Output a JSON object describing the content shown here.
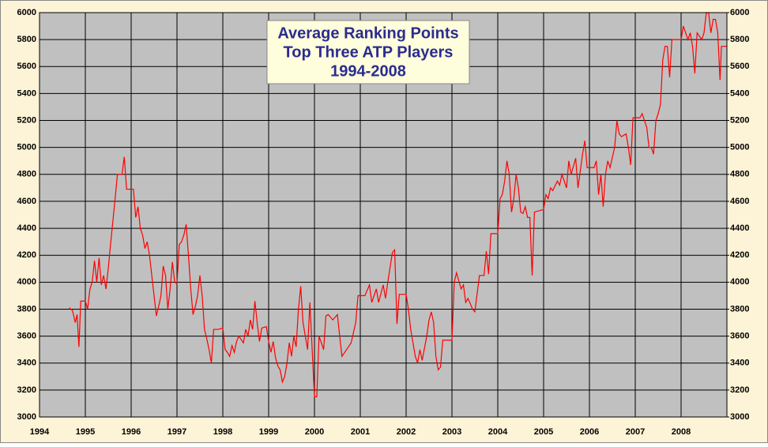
{
  "chart_data": {
    "type": "line",
    "title_lines": [
      "Average Ranking Points",
      "Top Three ATP Players",
      "1994-2008"
    ],
    "xlim": [
      1994,
      2009
    ],
    "xticks": [
      1994,
      1995,
      1996,
      1997,
      1998,
      1999,
      2000,
      2001,
      2002,
      2003,
      2004,
      2005,
      2006,
      2007,
      2008
    ],
    "ylim": [
      3000,
      6000
    ],
    "yticks": [
      3000,
      3200,
      3400,
      3600,
      3800,
      4000,
      4200,
      4400,
      4600,
      4800,
      5000,
      5200,
      5400,
      5600,
      5800,
      6000
    ],
    "y2lim": [
      3000,
      6000
    ],
    "y2ticks": [
      3000,
      3200,
      3400,
      3600,
      3800,
      4000,
      4200,
      4400,
      4600,
      4800,
      5000,
      5200,
      5400,
      5600,
      5800,
      6000
    ],
    "grid": true,
    "series": [
      {
        "color": "#ff0000",
        "x": [
          1994.65,
          1994.72,
          1994.78,
          1994.82,
          1994.86,
          1994.9,
          1995.0,
          1995.05,
          1995.1,
          1995.15,
          1995.2,
          1995.25,
          1995.3,
          1995.35,
          1995.4,
          1995.45,
          1995.5,
          1995.55,
          1995.6,
          1995.65,
          1995.7,
          1995.8,
          1995.85,
          1995.9,
          1996.0,
          1996.05,
          1996.1,
          1996.15,
          1996.2,
          1996.25,
          1996.3,
          1996.35,
          1996.4,
          1996.45,
          1996.5,
          1996.55,
          1996.6,
          1996.65,
          1996.7,
          1996.75,
          1996.8,
          1996.85,
          1996.9,
          1996.95,
          1997.0,
          1997.05,
          1997.1,
          1997.15,
          1997.2,
          1997.25,
          1997.3,
          1997.35,
          1997.4,
          1997.45,
          1997.5,
          1997.55,
          1997.6,
          1997.65,
          1997.7,
          1997.75,
          1997.8,
          1997.9,
          1998.0,
          1998.05,
          1998.1,
          1998.15,
          1998.2,
          1998.25,
          1998.3,
          1998.35,
          1998.45,
          1998.5,
          1998.55,
          1998.6,
          1998.65,
          1998.7,
          1998.75,
          1998.8,
          1998.85,
          1998.95,
          1999.0,
          1999.05,
          1999.1,
          1999.15,
          1999.2,
          1999.25,
          1999.3,
          1999.35,
          1999.4,
          1999.45,
          1999.5,
          1999.55,
          1999.6,
          1999.65,
          1999.7,
          1999.75,
          1999.8,
          1999.85,
          1999.9,
          2000.0,
          2000.05,
          2000.1,
          2000.15,
          2000.2,
          2000.25,
          2000.3,
          2000.4,
          2000.5,
          2000.55,
          2000.6,
          2000.7,
          2000.8,
          2000.9,
          2000.95,
          2001.1,
          2001.2,
          2001.25,
          2001.35,
          2001.4,
          2001.5,
          2001.55,
          2001.6,
          2001.7,
          2001.75,
          2001.8,
          2001.85,
          2002.0,
          2002.05,
          2002.1,
          2002.15,
          2002.2,
          2002.25,
          2002.3,
          2002.35,
          2002.45,
          2002.5,
          2002.55,
          2002.6,
          2002.65,
          2002.7,
          2002.75,
          2002.8,
          2003.0,
          2003.05,
          2003.1,
          2003.2,
          2003.25,
          2003.3,
          2003.35,
          2003.45,
          2003.5,
          2003.6,
          2003.7,
          2003.75,
          2003.8,
          2003.85,
          2004.0,
          2004.05,
          2004.1,
          2004.15,
          2004.2,
          2004.25,
          2004.3,
          2004.35,
          2004.4,
          2004.45,
          2004.5,
          2004.55,
          2004.6,
          2004.65,
          2004.7,
          2004.75,
          2004.8,
          2005.0,
          2005.05,
          2005.1,
          2005.15,
          2005.2,
          2005.3,
          2005.35,
          2005.4,
          2005.5,
          2005.55,
          2005.6,
          2005.7,
          2005.75,
          2005.85,
          2005.9,
          2005.95,
          2006.1,
          2006.15,
          2006.2,
          2006.25,
          2006.3,
          2006.35,
          2006.4,
          2006.45,
          2006.55,
          2006.6,
          2006.65,
          2006.7,
          2006.8,
          2006.85,
          2006.9,
          2006.95,
          2007.1,
          2007.15,
          2007.2,
          2007.25,
          2007.3,
          2007.35,
          2007.4,
          2007.45,
          2007.5,
          2007.55,
          2007.6,
          2007.65,
          2007.7,
          2007.75,
          2007.8,
          2008.0,
          2008.05,
          2008.1,
          2008.15,
          2008.2,
          2008.25,
          2008.3,
          2008.35,
          2008.45,
          2008.5,
          2008.55,
          2008.6,
          2008.65,
          2008.7,
          2008.75,
          2008.8,
          2008.85,
          2008.88,
          2009.0
        ],
        "values": [
          3810,
          3790,
          3700,
          3760,
          3520,
          3860,
          3860,
          3800,
          3950,
          4000,
          4160,
          4000,
          4180,
          3980,
          4050,
          3950,
          4100,
          4280,
          4450,
          4620,
          4800,
          4800,
          4930,
          4690,
          4690,
          4690,
          4480,
          4560,
          4400,
          4350,
          4250,
          4300,
          4200,
          4050,
          3900,
          3750,
          3820,
          3900,
          4120,
          4050,
          3800,
          3950,
          4150,
          4000,
          3990,
          4280,
          4300,
          4350,
          4430,
          4200,
          3950,
          3760,
          3820,
          3900,
          4050,
          3900,
          3650,
          3580,
          3500,
          3400,
          3650,
          3650,
          3660,
          3500,
          3480,
          3450,
          3530,
          3480,
          3560,
          3600,
          3550,
          3650,
          3600,
          3720,
          3650,
          3860,
          3700,
          3560,
          3660,
          3670,
          3560,
          3480,
          3560,
          3440,
          3380,
          3350,
          3260,
          3300,
          3400,
          3550,
          3450,
          3600,
          3520,
          3800,
          3970,
          3700,
          3600,
          3500,
          3850,
          3150,
          3150,
          3600,
          3550,
          3500,
          3750,
          3760,
          3720,
          3760,
          3600,
          3450,
          3500,
          3550,
          3700,
          3900,
          3900,
          3980,
          3850,
          3950,
          3850,
          3980,
          3880,
          4000,
          4220,
          4240,
          3690,
          3910,
          3910,
          3800,
          3650,
          3550,
          3450,
          3400,
          3500,
          3420,
          3600,
          3720,
          3780,
          3700,
          3450,
          3350,
          3370,
          3570,
          3570,
          4000,
          4070,
          3950,
          3980,
          3850,
          3880,
          3800,
          3780,
          4050,
          4050,
          4230,
          4060,
          4360,
          4360,
          4620,
          4650,
          4750,
          4900,
          4800,
          4520,
          4620,
          4800,
          4700,
          4520,
          4510,
          4560,
          4480,
          4480,
          4050,
          4520,
          4540,
          4650,
          4620,
          4700,
          4680,
          4750,
          4720,
          4800,
          4700,
          4900,
          4800,
          4920,
          4700,
          4950,
          5050,
          4850,
          4850,
          4900,
          4650,
          4800,
          4560,
          4800,
          4900,
          4850,
          5000,
          5200,
          5100,
          5080,
          5100,
          5000,
          4870,
          5220,
          5220,
          5250,
          5200,
          5150,
          5000,
          5000,
          4950,
          5200,
          5250,
          5320,
          5650,
          5750,
          5750,
          5520,
          5800,
          5800,
          5900,
          5850,
          5800,
          5850,
          5750,
          5550,
          5850,
          5800,
          5850,
          6000,
          6000,
          5850,
          5950,
          5950,
          5850,
          5500,
          5750,
          5750
        ]
      }
    ]
  }
}
